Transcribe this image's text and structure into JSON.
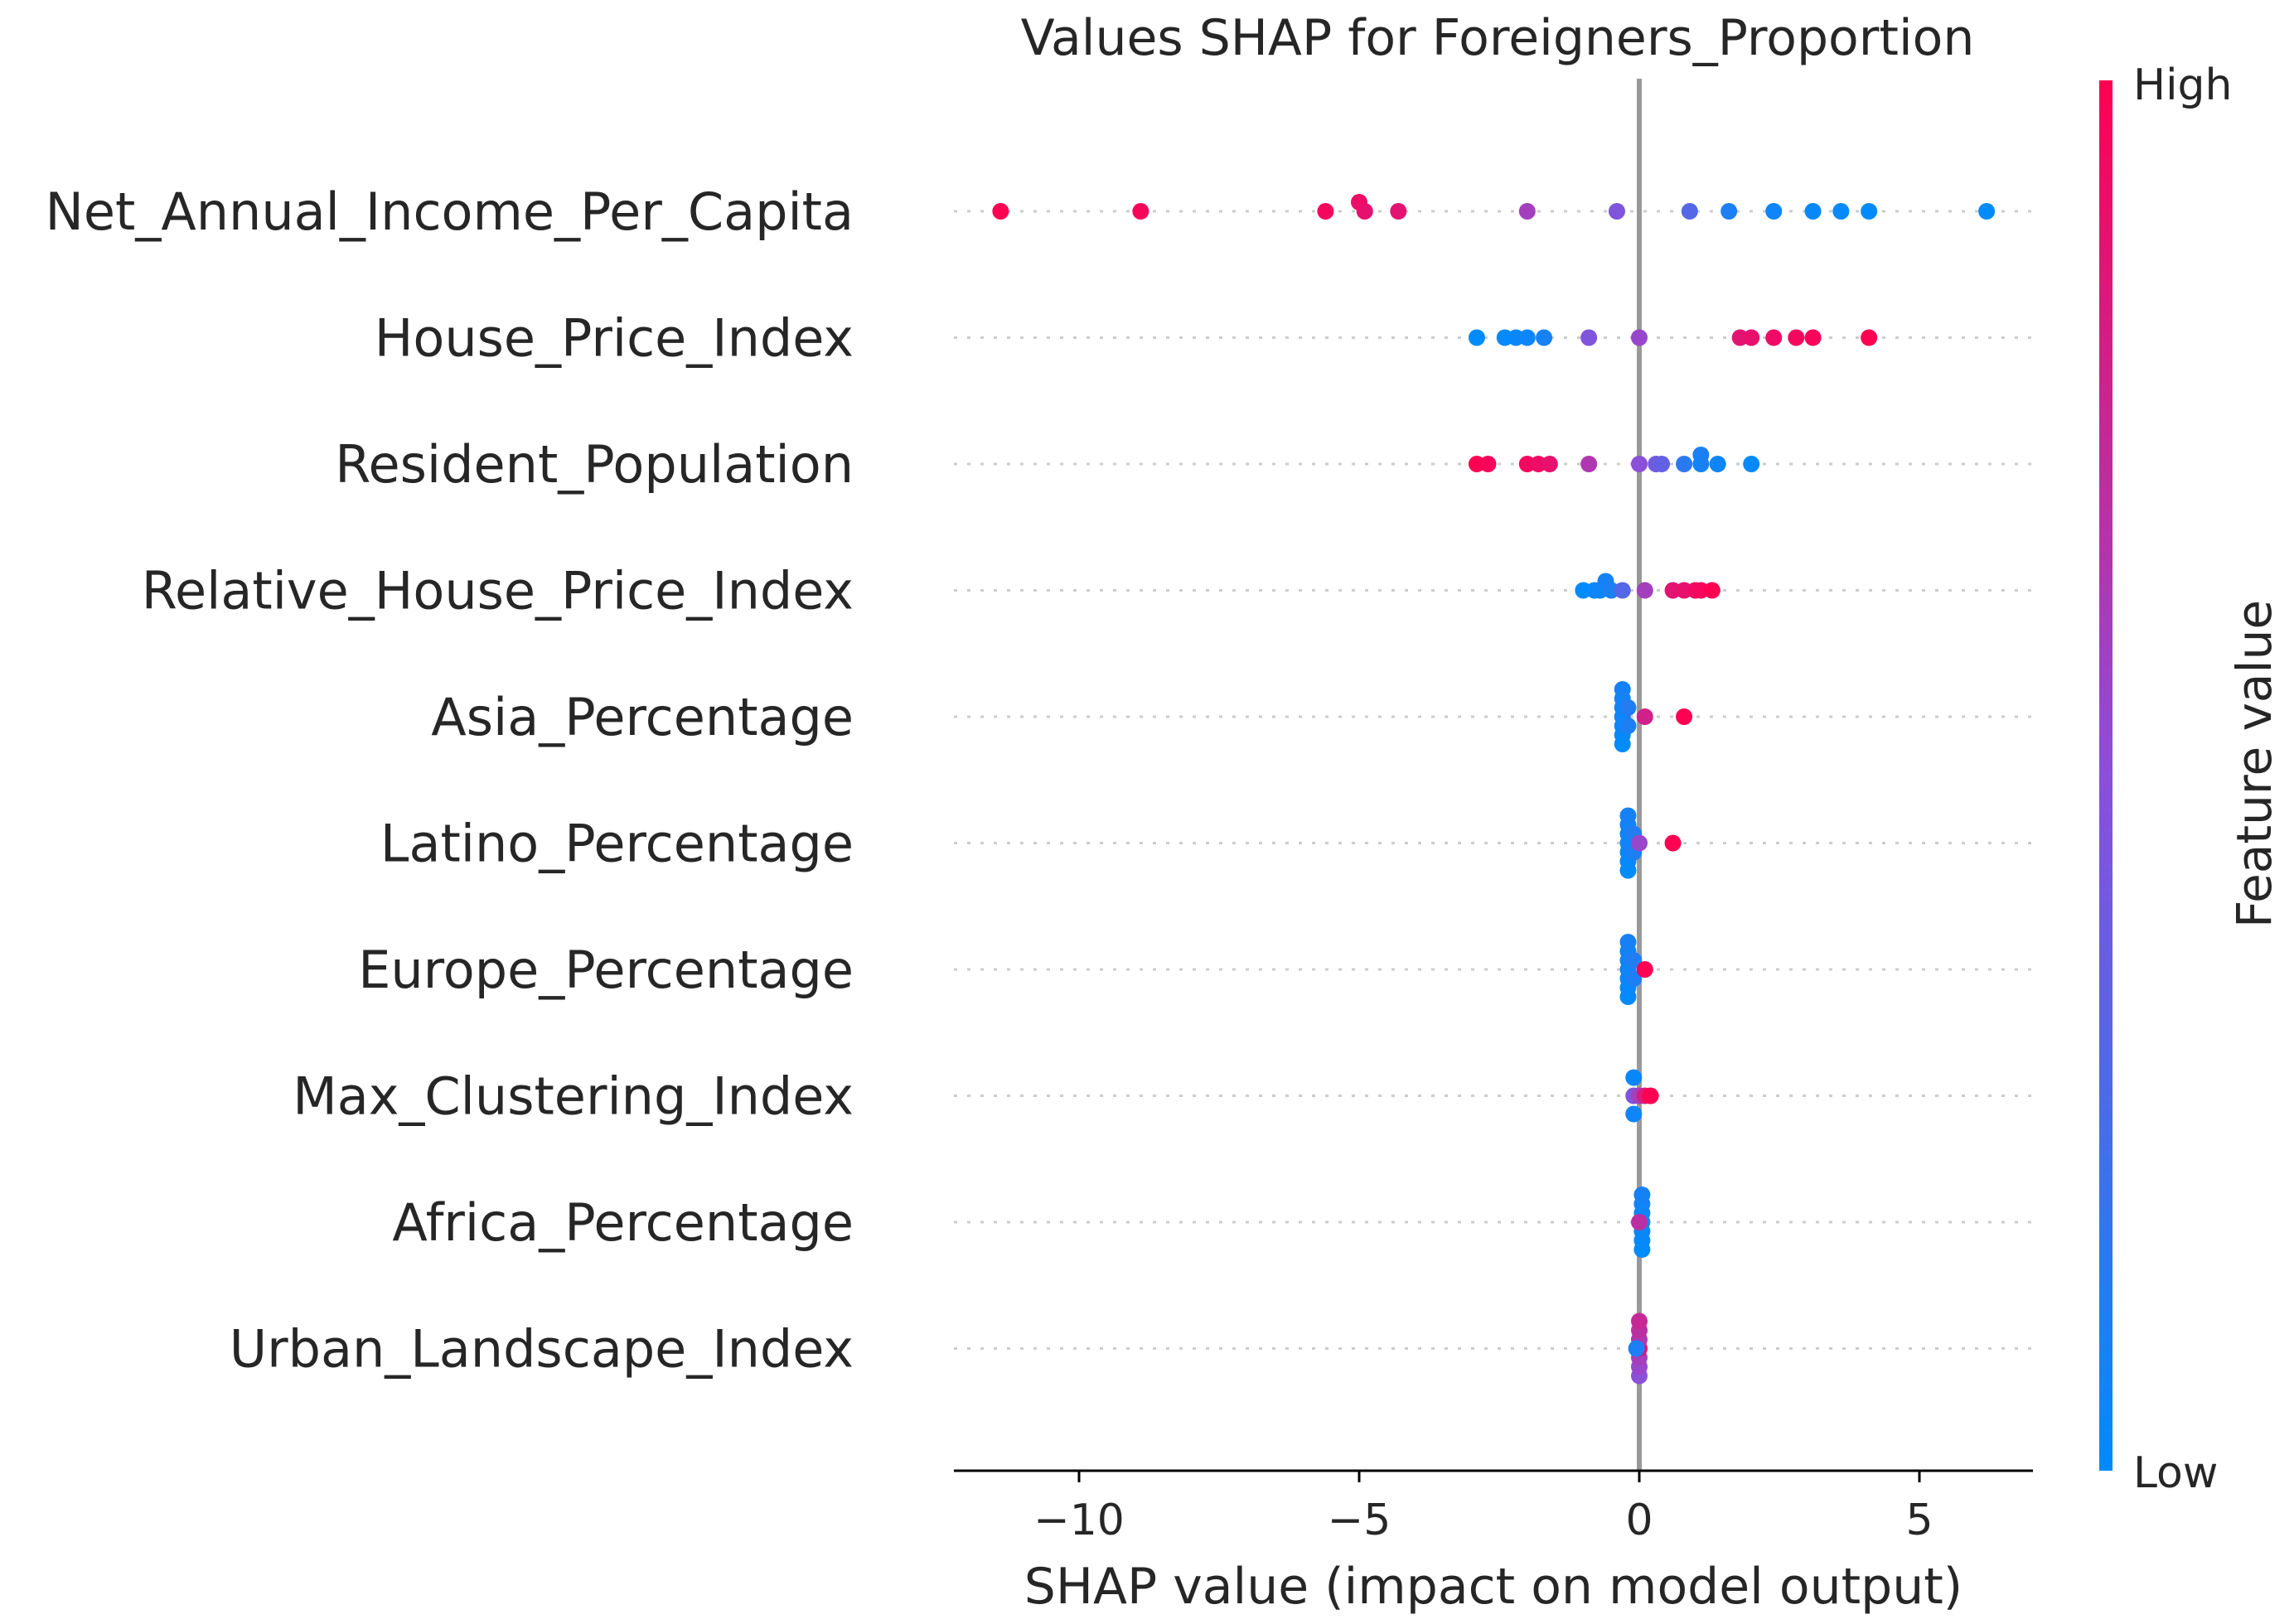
{
  "chart_data": {
    "type": "scatter",
    "subtype": "shap-beeswarm",
    "title": "Values SHAP for Foreigners_Proportion",
    "xlabel": "SHAP value (impact on model output)",
    "ylabel": "",
    "xlim": [
      -12.3,
      7.0
    ],
    "xticks": [
      -10,
      -5,
      0,
      5
    ],
    "xtick_labels": [
      "−10",
      "−5",
      "0",
      "5"
    ],
    "colorbar": {
      "title": "Feature value",
      "high_label": "High",
      "low_label": "Low",
      "low_color": "#008bfb",
      "mid_color": "#8c4fd8",
      "high_color": "#ff0052"
    },
    "grid": false,
    "features": [
      {
        "name": "Net_Annual_Income_Per_Capita",
        "points": [
          {
            "x": -11.4,
            "f": 1.0,
            "j": 0
          },
          {
            "x": -8.9,
            "f": 0.97,
            "j": 0
          },
          {
            "x": -5.6,
            "f": 0.95,
            "j": 0
          },
          {
            "x": -5.0,
            "f": 0.92,
            "j": 1
          },
          {
            "x": -4.9,
            "f": 0.9,
            "j": 0
          },
          {
            "x": -4.3,
            "f": 0.88,
            "j": 0
          },
          {
            "x": -2.0,
            "f": 0.6,
            "j": 0
          },
          {
            "x": -0.4,
            "f": 0.45,
            "j": 0
          },
          {
            "x": 0.9,
            "f": 0.3,
            "j": 0
          },
          {
            "x": 1.6,
            "f": 0.1,
            "j": 0
          },
          {
            "x": 2.4,
            "f": 0.05,
            "j": 0
          },
          {
            "x": 3.1,
            "f": 0.03,
            "j": 0
          },
          {
            "x": 3.6,
            "f": 0.02,
            "j": 0
          },
          {
            "x": 4.1,
            "f": 0.01,
            "j": 0
          },
          {
            "x": 6.2,
            "f": 0.0,
            "j": 0
          }
        ]
      },
      {
        "name": "House_Price_Index",
        "points": [
          {
            "x": -2.9,
            "f": 0.0,
            "j": 0
          },
          {
            "x": -2.4,
            "f": 0.02,
            "j": 0
          },
          {
            "x": -2.2,
            "f": 0.03,
            "j": 0
          },
          {
            "x": -2.0,
            "f": 0.05,
            "j": 0
          },
          {
            "x": -1.7,
            "f": 0.08,
            "j": 0
          },
          {
            "x": -0.9,
            "f": 0.45,
            "j": 0
          },
          {
            "x": 0.0,
            "f": 0.55,
            "j": 0
          },
          {
            "x": 1.8,
            "f": 0.88,
            "j": 0
          },
          {
            "x": 2.0,
            "f": 0.9,
            "j": 0
          },
          {
            "x": 2.4,
            "f": 0.93,
            "j": 0
          },
          {
            "x": 2.8,
            "f": 0.95,
            "j": 0
          },
          {
            "x": 3.1,
            "f": 0.97,
            "j": 0
          },
          {
            "x": 4.1,
            "f": 1.0,
            "j": 0
          }
        ]
      },
      {
        "name": "Resident_Population",
        "points": [
          {
            "x": -2.9,
            "f": 1.0,
            "j": 0
          },
          {
            "x": -2.7,
            "f": 0.97,
            "j": 0
          },
          {
            "x": -2.0,
            "f": 0.95,
            "j": 0
          },
          {
            "x": -1.8,
            "f": 0.92,
            "j": 0
          },
          {
            "x": -1.6,
            "f": 0.9,
            "j": 0
          },
          {
            "x": -0.9,
            "f": 0.65,
            "j": 0
          },
          {
            "x": 0.0,
            "f": 0.5,
            "j": 0
          },
          {
            "x": 0.3,
            "f": 0.4,
            "j": 0
          },
          {
            "x": 0.4,
            "f": 0.35,
            "j": 0
          },
          {
            "x": 0.8,
            "f": 0.15,
            "j": 0
          },
          {
            "x": 1.1,
            "f": 0.1,
            "j": 1
          },
          {
            "x": 1.1,
            "f": 0.08,
            "j": 0
          },
          {
            "x": 1.4,
            "f": 0.05,
            "j": 0
          },
          {
            "x": 2.0,
            "f": 0.02,
            "j": 0
          }
        ]
      },
      {
        "name": "Relative_House_Price_Index",
        "points": [
          {
            "x": -1.0,
            "f": 0.0,
            "j": 0
          },
          {
            "x": -0.8,
            "f": 0.02,
            "j": 0
          },
          {
            "x": -0.7,
            "f": 0.05,
            "j": 0
          },
          {
            "x": -0.6,
            "f": 0.08,
            "j": 1
          },
          {
            "x": -0.5,
            "f": 0.1,
            "j": 0
          },
          {
            "x": -0.3,
            "f": 0.3,
            "j": 0
          },
          {
            "x": 0.1,
            "f": 0.6,
            "j": 0
          },
          {
            "x": 0.6,
            "f": 0.88,
            "j": 0
          },
          {
            "x": 0.8,
            "f": 0.9,
            "j": 0
          },
          {
            "x": 1.0,
            "f": 0.93,
            "j": 0
          },
          {
            "x": 1.1,
            "f": 0.96,
            "j": 0
          },
          {
            "x": 1.3,
            "f": 1.0,
            "j": 0
          }
        ]
      },
      {
        "name": "Asia_Percentage",
        "points": [
          {
            "x": -0.3,
            "f": 0.0,
            "j": -3
          },
          {
            "x": -0.3,
            "f": 0.02,
            "j": -2
          },
          {
            "x": -0.3,
            "f": 0.03,
            "j": -1
          },
          {
            "x": -0.3,
            "f": 0.05,
            "j": 0
          },
          {
            "x": -0.3,
            "f": 0.04,
            "j": 1
          },
          {
            "x": -0.3,
            "f": 0.06,
            "j": 2
          },
          {
            "x": -0.3,
            "f": 0.08,
            "j": 3
          },
          {
            "x": -0.2,
            "f": 0.1,
            "j": -1
          },
          {
            "x": -0.2,
            "f": 0.12,
            "j": 1
          },
          {
            "x": 0.1,
            "f": 0.8,
            "j": 0
          },
          {
            "x": 0.8,
            "f": 1.0,
            "j": 0
          }
        ]
      },
      {
        "name": "Latino_Percentage",
        "points": [
          {
            "x": -0.2,
            "f": 0.0,
            "j": -3
          },
          {
            "x": -0.2,
            "f": 0.02,
            "j": -2
          },
          {
            "x": -0.2,
            "f": 0.03,
            "j": -1
          },
          {
            "x": -0.2,
            "f": 0.05,
            "j": 0
          },
          {
            "x": -0.2,
            "f": 0.04,
            "j": 1
          },
          {
            "x": -0.2,
            "f": 0.06,
            "j": 2
          },
          {
            "x": -0.2,
            "f": 0.08,
            "j": 3
          },
          {
            "x": -0.1,
            "f": 0.1,
            "j": -1
          },
          {
            "x": -0.1,
            "f": 0.12,
            "j": 1
          },
          {
            "x": 0.0,
            "f": 0.55,
            "j": 0
          },
          {
            "x": 0.6,
            "f": 1.0,
            "j": 0
          }
        ]
      },
      {
        "name": "Europe_Percentage",
        "points": [
          {
            "x": -0.2,
            "f": 0.0,
            "j": -3
          },
          {
            "x": -0.2,
            "f": 0.02,
            "j": -2
          },
          {
            "x": -0.2,
            "f": 0.03,
            "j": -1
          },
          {
            "x": -0.2,
            "f": 0.05,
            "j": 0
          },
          {
            "x": -0.2,
            "f": 0.04,
            "j": 1
          },
          {
            "x": -0.2,
            "f": 0.06,
            "j": 2
          },
          {
            "x": -0.2,
            "f": 0.08,
            "j": 3
          },
          {
            "x": -0.1,
            "f": 0.1,
            "j": -1
          },
          {
            "x": -0.1,
            "f": 0.12,
            "j": 1
          },
          {
            "x": 0.1,
            "f": 1.0,
            "j": 0
          }
        ]
      },
      {
        "name": "Max_Clustering_Index",
        "points": [
          {
            "x": -0.1,
            "f": 0.05,
            "j": -2
          },
          {
            "x": -0.1,
            "f": 0.45,
            "j": 0
          },
          {
            "x": 0.0,
            "f": 0.6,
            "j": 0
          },
          {
            "x": 0.1,
            "f": 0.85,
            "j": 0
          },
          {
            "x": 0.2,
            "f": 1.0,
            "j": 0
          },
          {
            "x": -0.1,
            "f": 0.03,
            "j": 2
          }
        ]
      },
      {
        "name": "Africa_Percentage",
        "points": [
          {
            "x": 0.05,
            "f": 0.0,
            "j": -3
          },
          {
            "x": 0.05,
            "f": 0.02,
            "j": -2
          },
          {
            "x": 0.05,
            "f": 0.03,
            "j": -1
          },
          {
            "x": 0.05,
            "f": 0.05,
            "j": 0
          },
          {
            "x": 0.05,
            "f": 0.04,
            "j": 1
          },
          {
            "x": 0.05,
            "f": 0.06,
            "j": 2
          },
          {
            "x": 0.05,
            "f": 0.08,
            "j": 3
          },
          {
            "x": 0.0,
            "f": 0.7,
            "j": 0
          }
        ]
      },
      {
        "name": "Urban_Landscape_Index",
        "points": [
          {
            "x": 0.0,
            "f": 0.5,
            "j": -3
          },
          {
            "x": 0.0,
            "f": 0.55,
            "j": -2
          },
          {
            "x": 0.0,
            "f": 0.6,
            "j": -1
          },
          {
            "x": 0.0,
            "f": 0.9,
            "j": 0
          },
          {
            "x": 0.0,
            "f": 0.65,
            "j": 1
          },
          {
            "x": 0.0,
            "f": 0.7,
            "j": 2
          },
          {
            "x": 0.0,
            "f": 0.75,
            "j": 3
          },
          {
            "x": -0.05,
            "f": 0.1,
            "j": 0
          }
        ]
      }
    ]
  }
}
